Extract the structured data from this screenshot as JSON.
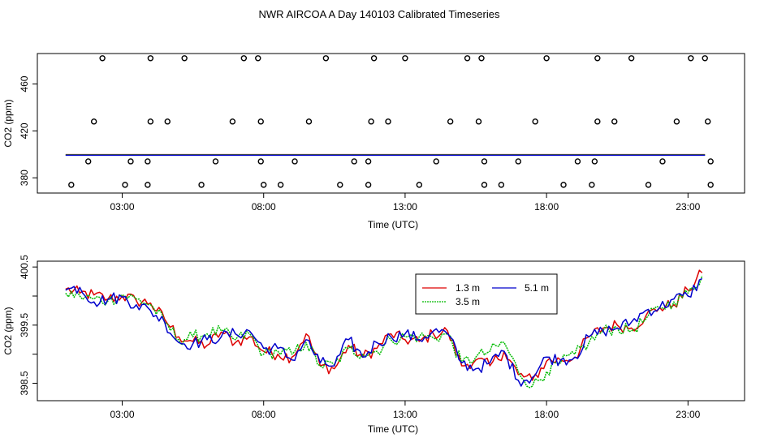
{
  "figure_title": "NWR AIRCOA A  Day 140103  Calibrated Timeseries",
  "colors": {
    "series_13": "#dd0000",
    "series_35": "#00bb00",
    "series_51": "#0000cc",
    "ink": "#000000"
  },
  "chart_data": [
    {
      "type": "scatter",
      "title": "",
      "xlabel": "Time (UTC)",
      "ylabel": "CO2 (ppm)",
      "xlim": [
        0.0,
        25.0
      ],
      "ylim": [
        367,
        486
      ],
      "x_ticks": [
        3,
        8,
        13,
        18,
        23
      ],
      "x_tick_labels": [
        "03:00",
        "08:00",
        "13:00",
        "18:00",
        "23:00"
      ],
      "y_ticks": [
        380,
        420,
        460
      ],
      "y_tick_labels": [
        "380",
        "420",
        "460"
      ],
      "scatter_points": [
        [
          1.2,
          374
        ],
        [
          1.8,
          394
        ],
        [
          2.0,
          428
        ],
        [
          2.3,
          482
        ],
        [
          3.1,
          374
        ],
        [
          3.3,
          394
        ],
        [
          3.9,
          394
        ],
        [
          3.9,
          374
        ],
        [
          4.0,
          428
        ],
        [
          4.0,
          482
        ],
        [
          4.6,
          428
        ],
        [
          5.2,
          482
        ],
        [
          5.8,
          374
        ],
        [
          6.3,
          394
        ],
        [
          6.9,
          428
        ],
        [
          7.3,
          482
        ],
        [
          7.8,
          482
        ],
        [
          7.9,
          428
        ],
        [
          7.9,
          394
        ],
        [
          8.0,
          374
        ],
        [
          8.6,
          374
        ],
        [
          9.1,
          394
        ],
        [
          9.6,
          428
        ],
        [
          10.2,
          482
        ],
        [
          10.7,
          374
        ],
        [
          11.2,
          394
        ],
        [
          11.7,
          374
        ],
        [
          11.7,
          394
        ],
        [
          11.8,
          428
        ],
        [
          11.9,
          482
        ],
        [
          12.4,
          428
        ],
        [
          13.0,
          482
        ],
        [
          13.5,
          374
        ],
        [
          14.1,
          394
        ],
        [
          14.6,
          428
        ],
        [
          15.2,
          482
        ],
        [
          15.6,
          428
        ],
        [
          15.7,
          482
        ],
        [
          15.8,
          394
        ],
        [
          15.8,
          374
        ],
        [
          16.4,
          374
        ],
        [
          17.0,
          394
        ],
        [
          17.6,
          428
        ],
        [
          18.0,
          482
        ],
        [
          18.6,
          374
        ],
        [
          19.1,
          394
        ],
        [
          19.6,
          374
        ],
        [
          19.7,
          394
        ],
        [
          19.8,
          428
        ],
        [
          19.8,
          482
        ],
        [
          20.4,
          428
        ],
        [
          21.0,
          482
        ],
        [
          21.6,
          374
        ],
        [
          22.1,
          394
        ],
        [
          22.6,
          428
        ],
        [
          23.1,
          482
        ],
        [
          23.6,
          482
        ],
        [
          23.7,
          428
        ],
        [
          23.8,
          394
        ],
        [
          23.8,
          374
        ]
      ],
      "series": [
        {
          "name": "1.3 m",
          "color_key": "series_13",
          "x_start": 1.0,
          "x_end": 23.6,
          "flat_value": 399.5
        },
        {
          "name": "3.5 m",
          "color_key": "series_35",
          "x_start": 1.0,
          "x_end": 23.6,
          "flat_value": 399.5
        },
        {
          "name": "5.1 m",
          "color_key": "series_51",
          "x_start": 1.0,
          "x_end": 23.6,
          "flat_value": 399.5
        }
      ]
    },
    {
      "type": "line",
      "title": "",
      "xlabel": "Time (UTC)",
      "ylabel": "CO2 (ppm)",
      "xlim": [
        0.0,
        25.0
      ],
      "ylim": [
        398.2,
        400.6
      ],
      "x_ticks": [
        3,
        8,
        13,
        18,
        23
      ],
      "x_tick_labels": [
        "03:00",
        "08:00",
        "13:00",
        "18:00",
        "23:00"
      ],
      "y_ticks": [
        398.5,
        399.0,
        399.5,
        400.0,
        400.5
      ],
      "y_tick_labels": [
        "398.5",
        "",
        "399.5",
        "",
        "400.5"
      ],
      "legend_position": "upper-middle",
      "series": [
        {
          "name": "1.3 m",
          "color_key": "series_13",
          "anchors": [
            [
              1.0,
              400.12
            ],
            [
              1.5,
              400.05
            ],
            [
              2.0,
              400.02
            ],
            [
              2.5,
              399.95
            ],
            [
              3.0,
              400.0
            ],
            [
              3.5,
              399.92
            ],
            [
              4.0,
              399.88
            ],
            [
              4.5,
              399.6
            ],
            [
              5.0,
              399.3
            ],
            [
              5.5,
              399.22
            ],
            [
              6.0,
              399.15
            ],
            [
              6.5,
              399.38
            ],
            [
              7.0,
              399.2
            ],
            [
              7.5,
              399.3
            ],
            [
              8.0,
              399.05
            ],
            [
              8.5,
              399.0
            ],
            [
              9.0,
              398.95
            ],
            [
              9.5,
              399.35
            ],
            [
              10.0,
              398.8
            ],
            [
              10.5,
              398.75
            ],
            [
              11.0,
              399.15
            ],
            [
              11.5,
              398.95
            ],
            [
              12.0,
              399.1
            ],
            [
              12.5,
              399.35
            ],
            [
              13.0,
              399.25
            ],
            [
              13.5,
              399.22
            ],
            [
              14.0,
              399.35
            ],
            [
              14.5,
              399.4
            ],
            [
              15.0,
              398.8
            ],
            [
              15.5,
              398.9
            ],
            [
              16.0,
              398.8
            ],
            [
              16.5,
              399.05
            ],
            [
              17.0,
              398.65
            ],
            [
              17.5,
              398.55
            ],
            [
              18.0,
              398.88
            ],
            [
              18.5,
              398.9
            ],
            [
              19.0,
              398.95
            ],
            [
              19.5,
              399.3
            ],
            [
              20.0,
              399.45
            ],
            [
              20.5,
              399.5
            ],
            [
              21.0,
              399.45
            ],
            [
              21.5,
              399.65
            ],
            [
              22.0,
              399.8
            ],
            [
              22.5,
              399.85
            ],
            [
              23.0,
              400.1
            ],
            [
              23.5,
              400.4
            ]
          ]
        },
        {
          "name": "3.5 m",
          "color_key": "series_35",
          "anchors": [
            [
              1.0,
              400.05
            ],
            [
              1.5,
              400.0
            ],
            [
              2.0,
              399.95
            ],
            [
              2.5,
              399.92
            ],
            [
              3.0,
              400.02
            ],
            [
              3.5,
              399.95
            ],
            [
              4.0,
              399.85
            ],
            [
              4.5,
              399.55
            ],
            [
              5.0,
              399.25
            ],
            [
              5.5,
              399.3
            ],
            [
              6.0,
              399.35
            ],
            [
              6.5,
              399.4
            ],
            [
              7.0,
              399.25
            ],
            [
              7.5,
              399.35
            ],
            [
              8.0,
              399.0
            ],
            [
              8.5,
              399.05
            ],
            [
              9.0,
              399.0
            ],
            [
              9.5,
              399.2
            ],
            [
              10.0,
              398.8
            ],
            [
              10.5,
              398.82
            ],
            [
              11.0,
              399.1
            ],
            [
              11.5,
              399.0
            ],
            [
              12.0,
              399.05
            ],
            [
              12.5,
              399.25
            ],
            [
              13.0,
              399.3
            ],
            [
              13.5,
              399.3
            ],
            [
              14.0,
              399.28
            ],
            [
              14.5,
              399.35
            ],
            [
              15.0,
              398.85
            ],
            [
              15.5,
              398.95
            ],
            [
              16.0,
              399.05
            ],
            [
              16.5,
              399.2
            ],
            [
              17.0,
              398.7
            ],
            [
              17.5,
              398.45
            ],
            [
              18.0,
              398.7
            ],
            [
              18.5,
              398.85
            ],
            [
              19.0,
              399.0
            ],
            [
              19.5,
              399.2
            ],
            [
              20.0,
              399.4
            ],
            [
              20.5,
              399.45
            ],
            [
              21.0,
              399.4
            ],
            [
              21.5,
              399.6
            ],
            [
              22.0,
              399.8
            ],
            [
              22.5,
              399.9
            ],
            [
              23.0,
              400.05
            ],
            [
              23.5,
              400.35
            ]
          ]
        },
        {
          "name": "5.1 m",
          "color_key": "series_51",
          "anchors": [
            [
              1.0,
              400.1
            ],
            [
              1.5,
              400.15
            ],
            [
              2.0,
              399.9
            ],
            [
              2.5,
              399.95
            ],
            [
              3.0,
              399.98
            ],
            [
              3.5,
              399.85
            ],
            [
              4.0,
              399.75
            ],
            [
              4.5,
              399.55
            ],
            [
              5.0,
              399.2
            ],
            [
              5.5,
              399.18
            ],
            [
              6.0,
              399.25
            ],
            [
              6.5,
              399.3
            ],
            [
              7.0,
              399.35
            ],
            [
              7.5,
              399.4
            ],
            [
              8.0,
              399.1
            ],
            [
              8.5,
              399.1
            ],
            [
              9.0,
              398.9
            ],
            [
              9.5,
              399.25
            ],
            [
              10.0,
              398.85
            ],
            [
              10.5,
              398.8
            ],
            [
              11.0,
              399.25
            ],
            [
              11.5,
              398.95
            ],
            [
              12.0,
              399.2
            ],
            [
              12.5,
              399.3
            ],
            [
              13.0,
              399.35
            ],
            [
              13.5,
              399.25
            ],
            [
              14.0,
              399.4
            ],
            [
              14.5,
              399.35
            ],
            [
              15.0,
              398.85
            ],
            [
              15.5,
              398.75
            ],
            [
              16.0,
              398.85
            ],
            [
              16.5,
              399.05
            ],
            [
              17.0,
              398.55
            ],
            [
              17.5,
              398.6
            ],
            [
              18.0,
              398.95
            ],
            [
              18.5,
              398.9
            ],
            [
              19.0,
              398.95
            ],
            [
              19.5,
              399.3
            ],
            [
              20.0,
              399.4
            ],
            [
              20.5,
              399.45
            ],
            [
              21.0,
              399.55
            ],
            [
              21.5,
              399.75
            ],
            [
              22.0,
              399.8
            ],
            [
              22.5,
              399.95
            ],
            [
              23.0,
              400.0
            ],
            [
              23.5,
              400.3
            ]
          ]
        }
      ]
    }
  ]
}
